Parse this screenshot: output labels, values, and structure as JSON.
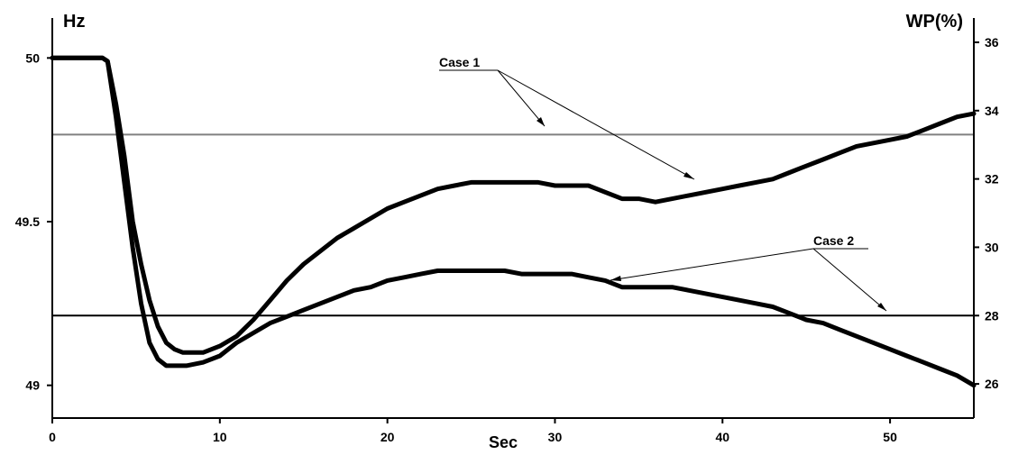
{
  "chart_data": {
    "type": "line",
    "title": "",
    "xlabel": "Sec",
    "ylabel_left": "Hz",
    "ylabel_right": "WP(%)",
    "xlim": [
      0,
      55
    ],
    "ylim_left": [
      48.9,
      50.1
    ],
    "ylim_right": [
      25,
      36.5
    ],
    "x_ticks": [
      0,
      10,
      20,
      30,
      40,
      50
    ],
    "y_ticks_left": [
      49,
      49.5,
      50
    ],
    "y_ticks_right": [
      26,
      28,
      30,
      32,
      34,
      36
    ],
    "grid": false,
    "reference_lines": [
      {
        "axis": "right",
        "value": 33.3,
        "color": "#808080"
      },
      {
        "axis": "right",
        "value": 28.0,
        "color": "#000000"
      }
    ],
    "annotations": [
      {
        "text": "Case 1",
        "points_to": [
          "series-1-frequency",
          "series-1-wind-power"
        ]
      },
      {
        "text": "Case 2",
        "points_to": [
          "series-2-frequency",
          "series-2-wind-power"
        ]
      }
    ],
    "series": [
      {
        "axis": "left",
        "color": "#000000",
        "x": [
          0,
          1,
          2,
          3,
          3.3,
          3.8,
          4.3,
          4.8,
          5.3,
          5.8,
          6.3,
          6.8,
          7.3,
          7.8,
          8.3,
          9,
          9.5,
          10,
          11,
          12,
          13,
          14,
          15,
          16,
          17,
          18,
          19,
          20,
          21,
          22,
          23,
          24,
          25,
          26,
          27,
          28,
          29,
          30,
          31,
          32,
          33,
          34,
          35,
          36,
          37,
          38,
          39,
          40,
          41,
          42,
          43,
          44,
          45,
          46,
          47,
          48,
          49,
          50,
          51,
          52,
          53,
          54,
          55
        ],
        "values": [
          50,
          50,
          50,
          50,
          49.99,
          49.86,
          49.7,
          49.5,
          49.37,
          49.26,
          49.18,
          49.13,
          49.11,
          49.1,
          49.1,
          49.1,
          49.11,
          49.12,
          49.15,
          49.2,
          49.26,
          49.32,
          49.37,
          49.41,
          49.45,
          49.48,
          49.51,
          49.54,
          49.56,
          49.58,
          49.6,
          49.61,
          49.62,
          49.62,
          49.62,
          49.62,
          49.62,
          49.61,
          49.61,
          49.61,
          49.59,
          49.57,
          49.57,
          49.56,
          49.57,
          49.58,
          49.59,
          49.6,
          49.61,
          49.62,
          49.63,
          49.65,
          49.67,
          49.69,
          49.71,
          49.73,
          49.74,
          49.75,
          49.76,
          49.78,
          49.8,
          49.82,
          49.83
        ]
      },
      {
        "axis": "left",
        "color": "#000000",
        "x": [
          0,
          1,
          2,
          3,
          3.3,
          3.8,
          4.3,
          4.8,
          5.3,
          5.8,
          6.3,
          6.8,
          7.3,
          8,
          9,
          10,
          11,
          12,
          13,
          14,
          15,
          16,
          17,
          18,
          19,
          20,
          21,
          22,
          23,
          24,
          25,
          26,
          27,
          28,
          29,
          30,
          31,
          32,
          33,
          34,
          35,
          36,
          37,
          38,
          39,
          40,
          41,
          42,
          43,
          44,
          45,
          46,
          47,
          48,
          49,
          50,
          51,
          52,
          53,
          54,
          55
        ],
        "values": [
          50,
          50,
          50,
          50,
          49.99,
          49.82,
          49.62,
          49.42,
          49.25,
          49.13,
          49.08,
          49.06,
          49.06,
          49.06,
          49.07,
          49.09,
          49.13,
          49.16,
          49.19,
          49.21,
          49.23,
          49.25,
          49.27,
          49.29,
          49.3,
          49.32,
          49.33,
          49.34,
          49.35,
          49.35,
          49.35,
          49.35,
          49.35,
          49.34,
          49.34,
          49.34,
          49.34,
          49.33,
          49.32,
          49.3,
          49.3,
          49.3,
          49.3,
          49.29,
          49.28,
          49.27,
          49.26,
          49.25,
          49.24,
          49.22,
          49.2,
          49.19,
          49.17,
          49.15,
          49.13,
          49.11,
          49.09,
          49.07,
          49.05,
          49.03,
          49.0
        ]
      }
    ]
  }
}
